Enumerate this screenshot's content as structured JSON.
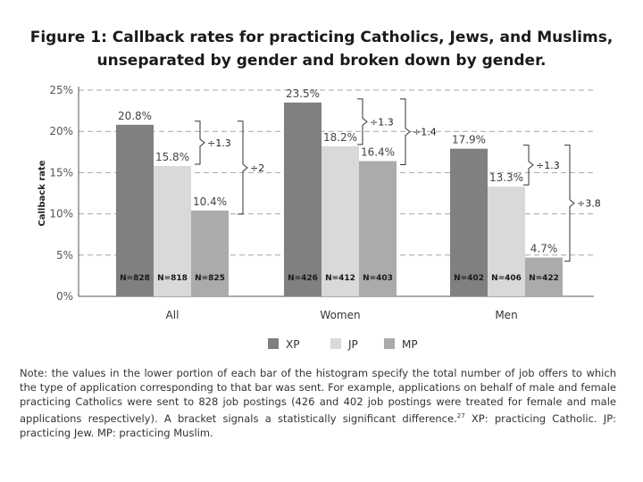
{
  "title_line1": "Figure 1: Callback rates for practicing Catholics, Jews, and Muslims,",
  "title_line2": "unseparated by gender and broken down by gender.",
  "chart_data": {
    "type": "bar",
    "title": "Figure 1: Callback rates for practicing Catholics, Jews, and Muslims, unseparated by gender and broken down by gender.",
    "xlabel": "",
    "ylabel": "Callback rate",
    "ylim": [
      0,
      25
    ],
    "yticks": [
      "0%",
      "5%",
      "10%",
      "15%",
      "20%",
      "25%"
    ],
    "grid": "horizontal dashed",
    "categories": [
      "All",
      "Women",
      "Men"
    ],
    "series": [
      {
        "name": "XP",
        "color": "#808080",
        "values": [
          20.8,
          23.5,
          17.9
        ],
        "labels": [
          "20.8%",
          "23.5%",
          "17.9%"
        ],
        "n": [
          "N=828",
          "N=426",
          "N=402"
        ]
      },
      {
        "name": "JP",
        "color": "#d9d9d9",
        "values": [
          15.8,
          18.2,
          13.3
        ],
        "labels": [
          "15.8%",
          "18.2%",
          "13.3%"
        ],
        "n": [
          "N=818",
          "N=412",
          "N=406"
        ]
      },
      {
        "name": "MP",
        "color": "#ababab",
        "values": [
          10.4,
          16.4,
          4.7
        ],
        "labels": [
          "10.4%",
          "16.4%",
          "4.7%"
        ],
        "n": [
          "N=825",
          "N=403",
          "N=422"
        ]
      }
    ],
    "brackets": [
      {
        "category": "All",
        "from_series": "XP",
        "to_series": "JP",
        "label": "÷1.3"
      },
      {
        "category": "All",
        "from_series": "XP",
        "to_series": "MP",
        "label": "÷2"
      },
      {
        "category": "Women",
        "from_series": "XP",
        "to_series": "JP",
        "label": "÷1.3"
      },
      {
        "category": "Women",
        "from_series": "XP",
        "to_series": "MP",
        "label": "÷1.4"
      },
      {
        "category": "Men",
        "from_series": "XP",
        "to_series": "JP",
        "label": "÷1.3"
      },
      {
        "category": "Men",
        "from_series": "XP",
        "to_series": "MP",
        "label": "÷3.8"
      }
    ],
    "legend": "bottom-center"
  },
  "note": {
    "text": "Note: the values in the lower portion of each bar of the histogram specify the total number of job offers to which the type of application corresponding to that bar was sent. For example, applications on behalf of male and female practicing Catholics were sent to 828 job postings (426 and 402 job postings were treated for female and male applications respectively). A bracket signals a statistically significant difference.",
    "footnote": "27",
    "text_after": " XP: practicing Catholic. JP: practicing Jew. MP: practicing Muslim."
  }
}
